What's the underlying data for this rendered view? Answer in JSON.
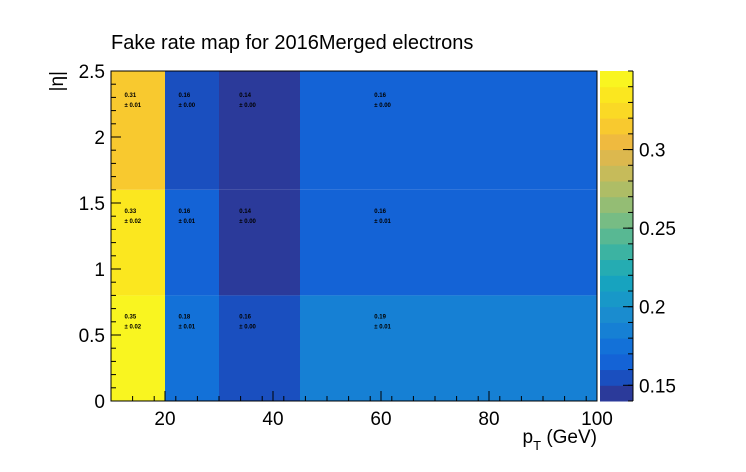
{
  "chart_data": {
    "type": "heatmap",
    "title": "Fake rate map for 2016Merged electrons",
    "xlabel": "p_T (GeV)",
    "xlabel_main": "p",
    "xlabel_sub": "T",
    "xlabel_unit": " (GeV)",
    "ylabel": "|η|",
    "xlim": [
      10,
      100
    ],
    "ylim": [
      0,
      2.5
    ],
    "x_edges": [
      10,
      20,
      30,
      45,
      100
    ],
    "y_edges": [
      0,
      0.8,
      1.6,
      2.5
    ],
    "x_ticks": [
      20,
      40,
      60,
      80,
      100
    ],
    "y_ticks": [
      "0",
      "0.5",
      "1",
      "1.5",
      "2",
      "2.5"
    ],
    "z_range": [
      0.14,
      0.35
    ],
    "z_ticks": [
      "0.15",
      "0.2",
      "0.25",
      "0.3"
    ],
    "z_tick_values": [
      0.15,
      0.2,
      0.25,
      0.3
    ],
    "cells": [
      {
        "row": 2,
        "col": 0,
        "value": "0.31",
        "error": "± 0.01",
        "z": 0.31
      },
      {
        "row": 2,
        "col": 1,
        "value": "0.16",
        "error": "± 0.00",
        "z": 0.16
      },
      {
        "row": 2,
        "col": 2,
        "value": "0.14",
        "error": "± 0.00",
        "z": 0.14
      },
      {
        "row": 2,
        "col": 3,
        "value": "0.16",
        "error": "± 0.00",
        "z": 0.165
      },
      {
        "row": 1,
        "col": 0,
        "value": "0.33",
        "error": "± 0.02",
        "z": 0.33
      },
      {
        "row": 1,
        "col": 1,
        "value": "0.16",
        "error": "± 0.01",
        "z": 0.165
      },
      {
        "row": 1,
        "col": 2,
        "value": "0.14",
        "error": "± 0.00",
        "z": 0.14
      },
      {
        "row": 1,
        "col": 3,
        "value": "0.16",
        "error": "± 0.01",
        "z": 0.165
      },
      {
        "row": 0,
        "col": 0,
        "value": "0.35",
        "error": "± 0.02",
        "z": 0.35
      },
      {
        "row": 0,
        "col": 1,
        "value": "0.18",
        "error": "± 0.01",
        "z": 0.18
      },
      {
        "row": 0,
        "col": 2,
        "value": "0.16",
        "error": "± 0.00",
        "z": 0.158
      },
      {
        "row": 0,
        "col": 3,
        "value": "0.19",
        "error": "± 0.01",
        "z": 0.185
      }
    ],
    "palette": [
      "#2b3a9a",
      "#1a4fbf",
      "#1463d6",
      "#1371d8",
      "#1680d4",
      "#1a8ccf",
      "#1898c8",
      "#17a3bf",
      "#25acb2",
      "#3cb3a2",
      "#58b893",
      "#77bc84",
      "#94bd74",
      "#aebd66",
      "#c6bb5a",
      "#dcb84e",
      "#efba3f",
      "#f8c92f",
      "#fad925",
      "#fbe71f",
      "#f9f520"
    ],
    "label_in_cell": {
      "x": 0.25,
      "y": 0.78
    }
  }
}
